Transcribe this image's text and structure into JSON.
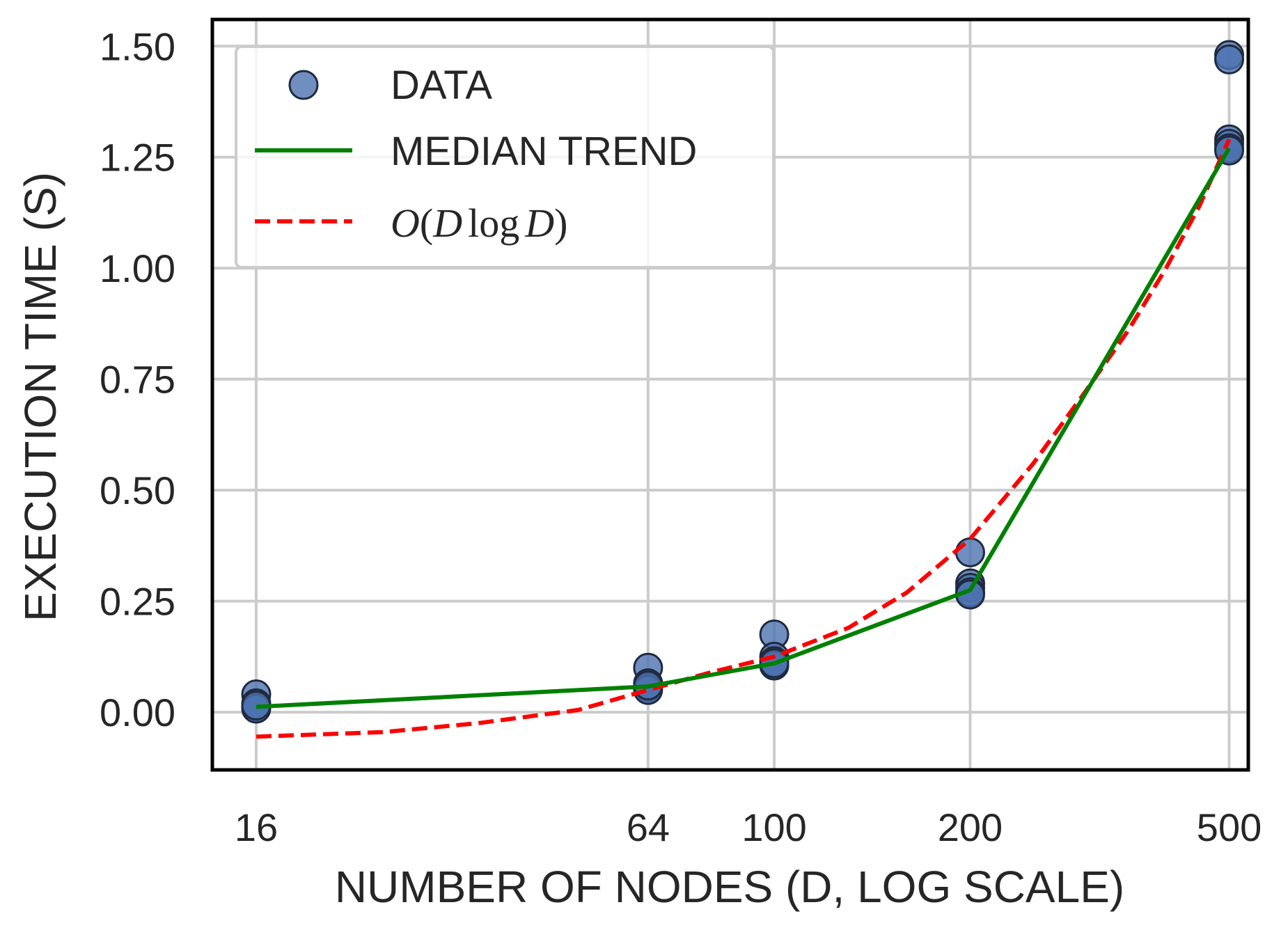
{
  "chart_data": {
    "type": "scatter",
    "title": "",
    "xlabel": "NUMBER OF NODES (D, LOG SCALE)",
    "ylabel": "EXECUTION TIME (S)",
    "x_scale": "log",
    "xlim": [
      13.7,
      535
    ],
    "ylim": [
      -0.13,
      1.56
    ],
    "x_ticks": [
      16,
      64,
      100,
      200,
      500
    ],
    "x_tick_labels": [
      "16",
      "64",
      "100",
      "200",
      "500"
    ],
    "y_ticks": [
      0.0,
      0.25,
      0.5,
      0.75,
      1.0,
      1.25,
      1.5
    ],
    "y_tick_labels": [
      "0.00",
      "0.25",
      "0.50",
      "0.75",
      "1.00",
      "1.25",
      "1.50"
    ],
    "grid": true,
    "legend_position": "top-left",
    "series": [
      {
        "name": "DATA",
        "kind": "scatter",
        "color": "#4C72B0",
        "points": [
          [
            16,
            0.04
          ],
          [
            16,
            0.02
          ],
          [
            16,
            0.012
          ],
          [
            16,
            0.008
          ],
          [
            16,
            0.015
          ],
          [
            64,
            0.1
          ],
          [
            64,
            0.065
          ],
          [
            64,
            0.055
          ],
          [
            64,
            0.05
          ],
          [
            64,
            0.06
          ],
          [
            100,
            0.175
          ],
          [
            100,
            0.125
          ],
          [
            100,
            0.115
          ],
          [
            100,
            0.105
          ],
          [
            100,
            0.11
          ],
          [
            200,
            0.36
          ],
          [
            200,
            0.29
          ],
          [
            200,
            0.28
          ],
          [
            200,
            0.27
          ],
          [
            200,
            0.265
          ],
          [
            500,
            1.48
          ],
          [
            500,
            1.47
          ],
          [
            500,
            1.29
          ],
          [
            500,
            1.28
          ],
          [
            500,
            1.27
          ],
          [
            500,
            1.265
          ]
        ]
      },
      {
        "name": "MEDIAN TREND",
        "kind": "line",
        "color": "#008000",
        "points": [
          [
            16,
            0.012
          ],
          [
            64,
            0.058
          ],
          [
            100,
            0.11
          ],
          [
            200,
            0.275
          ],
          [
            500,
            1.27
          ]
        ]
      },
      {
        "name": "O(D log D)",
        "kind": "dashed-line",
        "color": "#FF0000",
        "points": [
          [
            16,
            -0.055
          ],
          [
            25,
            -0.045
          ],
          [
            35,
            -0.025
          ],
          [
            50,
            0.005
          ],
          [
            64,
            0.05
          ],
          [
            80,
            0.09
          ],
          [
            100,
            0.125
          ],
          [
            130,
            0.19
          ],
          [
            160,
            0.27
          ],
          [
            200,
            0.39
          ],
          [
            250,
            0.56
          ],
          [
            300,
            0.72
          ],
          [
            350,
            0.86
          ],
          [
            400,
            1.0
          ],
          [
            450,
            1.14
          ],
          [
            500,
            1.29
          ]
        ]
      }
    ],
    "legend": {
      "entries": [
        {
          "label": "DATA",
          "marker": "circle"
        },
        {
          "label": "MEDIAN TREND",
          "marker": "solid-line"
        },
        {
          "label_prefix": "O",
          "label_var": "D",
          "label_func": "log",
          "label_var2": "D",
          "marker": "dashed-line"
        }
      ]
    }
  }
}
